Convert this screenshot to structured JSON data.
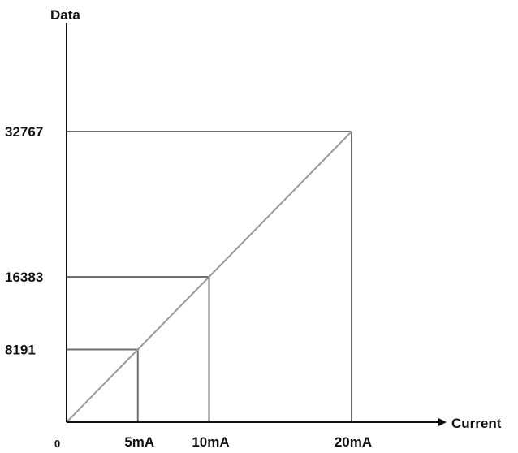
{
  "chart_data": {
    "type": "line",
    "title": "",
    "xlabel": "Current",
    "ylabel": "Data",
    "x_ticks": [
      {
        "value": 0,
        "label": "0"
      },
      {
        "value": 5,
        "label": "5mA"
      },
      {
        "value": 10,
        "label": "10mA"
      },
      {
        "value": 20,
        "label": "20mA"
      }
    ],
    "y_ticks": [
      {
        "value": 8191,
        "label": "8191"
      },
      {
        "value": 16383,
        "label": "16383"
      },
      {
        "value": 32767,
        "label": "32767"
      }
    ],
    "x": [
      0,
      5,
      10,
      20
    ],
    "y": [
      0,
      8191,
      16383,
      32767
    ],
    "xlim": [
      0,
      20
    ],
    "ylim": [
      0,
      32767
    ],
    "grid": false,
    "colors": {
      "axis": "#111111",
      "line": "#9a9a9a",
      "guide": "#6e6e6e"
    }
  }
}
